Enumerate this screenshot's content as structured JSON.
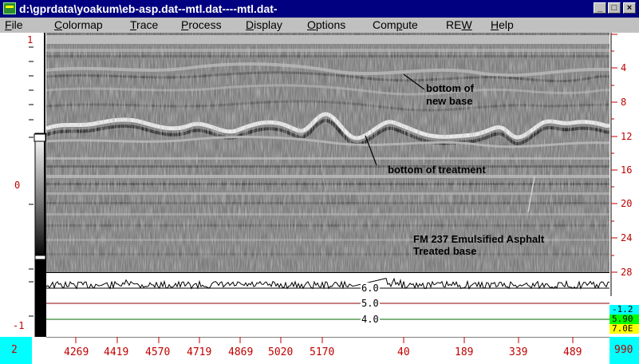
{
  "window": {
    "title": "d:\\gprdata\\yoakum\\eb-asp.dat--mtl.dat----mtl.dat-",
    "controls": {
      "minimize": "_",
      "maximize": "□",
      "close": "×"
    }
  },
  "menu": [
    {
      "label": "File",
      "ul": "F",
      "rest": "ile"
    },
    {
      "label": "Colormap",
      "ul": "C",
      "rest": "olormap"
    },
    {
      "label": "Trace",
      "ul": "T",
      "rest": "race"
    },
    {
      "label": "Process",
      "ul": "P",
      "rest": "rocess"
    },
    {
      "label": "Display",
      "ul": "D",
      "rest": "isplay"
    },
    {
      "label": "Options",
      "ul": "O",
      "rest": "ptions"
    },
    {
      "label": "Compute",
      "pre": "Com",
      "ul": "p",
      "rest": "ute"
    },
    {
      "label": "REW",
      "pre": "RE",
      "ul": "W",
      "rest": ""
    },
    {
      "label": "Help",
      "ul": "H",
      "rest": "elp"
    }
  ],
  "annotations": {
    "new_base_line1": "bottom of",
    "new_base_line2": "new base",
    "treatment": "bottom of treatment",
    "section_line1": "FM 237 Emulsified Asphalt",
    "section_line2": "Treated base"
  },
  "reference_lines": [
    {
      "label": "6.0",
      "color": "#000000"
    },
    {
      "label": "5.0",
      "color": "#8b0000"
    },
    {
      "label": "4.0",
      "color": "#006400"
    }
  ],
  "depth_scale": [
    "4",
    "8",
    "12",
    "16",
    "20",
    "24",
    "28"
  ],
  "left_scale": {
    "top": "1",
    "mid": "0",
    "bottom": "-1"
  },
  "right_readouts": [
    {
      "text": "-1.2",
      "bg": "#00ffff"
    },
    {
      "text": "5.90",
      "bg": "#00ff00"
    },
    {
      "text": "7.0E",
      "bg": "#ffff00"
    }
  ],
  "x_axis": {
    "left_box": "2",
    "ticks": [
      "4269",
      "4419",
      "4570",
      "4719",
      "4869",
      "5020",
      "5170",
      "40",
      "189",
      "339",
      "489"
    ],
    "right_box": "990"
  },
  "colors": {
    "title_bg": "#000080",
    "menu_bg": "#c0c0c0",
    "accent_cyan": "#00ffff",
    "tick_red": "#c00000"
  }
}
